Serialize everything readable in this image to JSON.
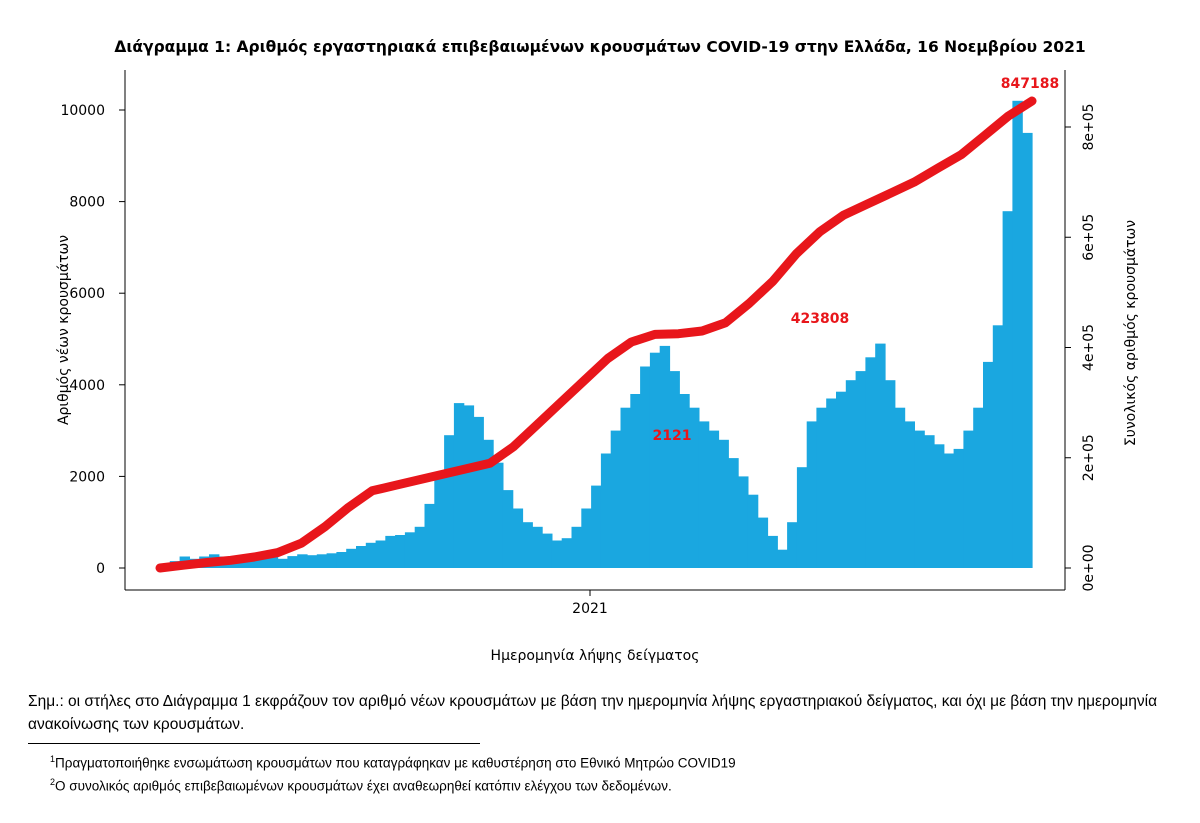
{
  "chart_data": {
    "type": "bar",
    "title": "Διάγραμμα 1: Αριθμός εργαστηριακά επιβεβαιωμένων κρουσμάτων COVID-19 στην Ελλάδα, 16 Νοεμβρίου 2021",
    "xlabel": "Ημερομηνία λήψης δείγματος",
    "ylabel": "Αριθμός νέων κρουσμάτων",
    "y2label": "Συνολικός αριθμός κρουσμάτων",
    "x_tick_labels": [
      "2021"
    ],
    "y_ticks": [
      "0",
      "2000",
      "4000",
      "6000",
      "8000",
      "10000"
    ],
    "y2_ticks": [
      "0e+00",
      "2e+05",
      "4e+05",
      "6e+05",
      "8e+05"
    ],
    "ylim": [
      0,
      10500
    ],
    "y2lim": [
      0,
      880000
    ],
    "bar_color": "#1aa7e0",
    "line_color": "#e8161b",
    "series": [
      {
        "name": "new_cases",
        "values": [
          80,
          150,
          250,
          200,
          250,
          300,
          250,
          200,
          280,
          300,
          320,
          250,
          200,
          260,
          300,
          280,
          300,
          320,
          350,
          420,
          480,
          550,
          600,
          700,
          720,
          780,
          900,
          1400,
          2000,
          2900,
          3600,
          3550,
          3300,
          2800,
          2300,
          1700,
          1300,
          1000,
          900,
          750,
          600,
          650,
          900,
          1300,
          1800,
          2500,
          3000,
          3500,
          3800,
          4400,
          4700,
          4850,
          4300,
          3800,
          3500,
          3200,
          3000,
          2800,
          2400,
          2000,
          1600,
          1100,
          700,
          400,
          1000,
          2200,
          3200,
          3500,
          3700,
          3850,
          4100,
          4300,
          4600,
          4900,
          4100,
          3500,
          3200,
          3000,
          2900,
          2700,
          2500,
          2600,
          3000,
          3500,
          4500,
          5300,
          7790,
          10200,
          9500
        ]
      },
      {
        "name": "cumulative",
        "values": [
          0,
          5000,
          10000,
          14000,
          20000,
          28000,
          45000,
          75000,
          110000,
          140000,
          150000,
          160000,
          170000,
          180000,
          190000,
          220000,
          260000,
          300000,
          340000,
          380000,
          410000,
          423808,
          425000,
          430000,
          445000,
          480000,
          520000,
          570000,
          610000,
          640000,
          660000,
          680000,
          700000,
          725000,
          750000,
          785000,
          820000,
          847188
        ]
      }
    ],
    "annotations": [
      "847188",
      "423808",
      "2121"
    ]
  },
  "note": "Σημ.: οι στήλες στο Διάγραμμα 1 εκφράζουν τον αριθμό νέων κρουσμάτων με βάση την ημερομηνία λήψης εργαστηριακού δείγματος, και όχι με βάση την ημερομηνία ανακοίνωσης των κρουσμάτων.",
  "footnotes": [
    {
      "mark": "1",
      "text": "Πραγματοποιήθηκε ενσωμάτωση κρουσμάτων που καταγράφηκαν με καθυστέρηση στο Εθνικό Μητρώο COVID19"
    },
    {
      "mark": "2",
      "text": "Ο συνολικός αριθμός επιβεβαιωμένων κρουσμάτων έχει αναθεωρηθεί κατόπιν ελέγχου των δεδομένων."
    }
  ]
}
